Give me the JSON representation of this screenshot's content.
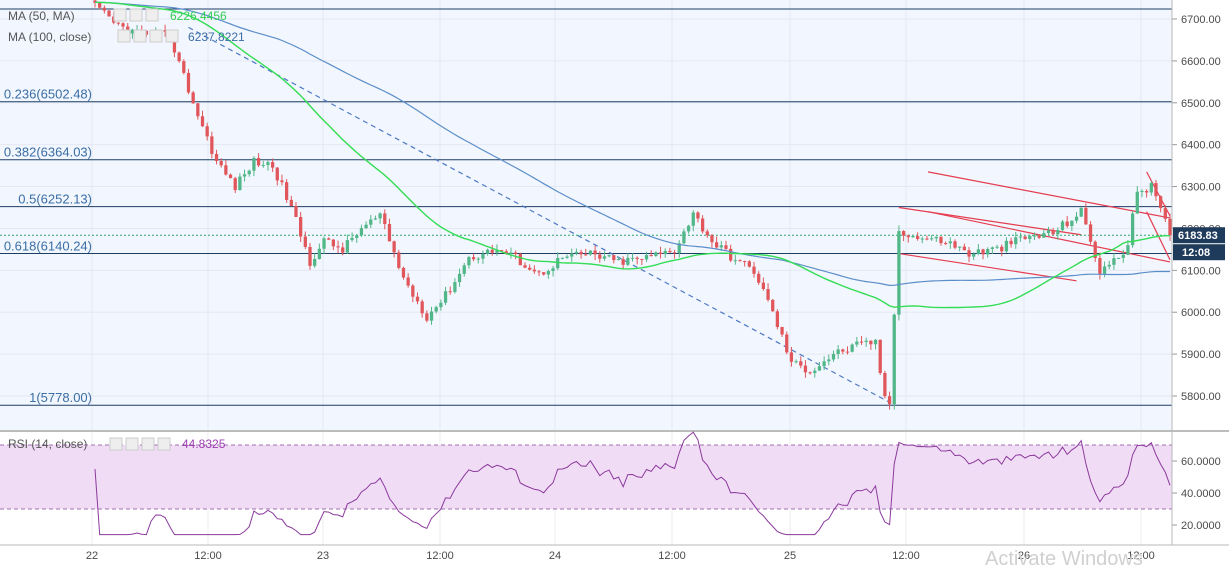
{
  "header": {
    "ma50_label": "MA (50, MA)",
    "ma50_value": "6226.4456",
    "ma100_label": "MA (100, close)",
    "ma100_value": "6237.8221",
    "rsi_label": "RSI (14, close)",
    "rsi_value": "44.8325"
  },
  "price_badge": {
    "price": "6183.83",
    "countdown": "12:08"
  },
  "watermark": "Activate Windows",
  "colors": {
    "up": "#52b788",
    "down": "#e0565b",
    "ma50": "#33dd55",
    "ma100": "#5b8ec9",
    "fib": "#1c3f66",
    "channel": "#e53d4f",
    "trendline": "#4b78c4",
    "rsi": "#8b3a9c",
    "rsi_band": "#f1dcf6",
    "badge": "#1f3b5c"
  },
  "chart_data": [
    {
      "type": "candlestick",
      "title": "",
      "x_ticks": [
        "22",
        "12:00",
        "23",
        "12:00",
        "24",
        "12:00",
        "25",
        "12:00",
        "26",
        "12:00"
      ],
      "y_ticks": [
        "6700.00",
        "6600.00",
        "6500.00",
        "6400.00",
        "6300.00",
        "6200.00",
        "6100.00",
        "6000.00",
        "5900.00",
        "5800.00"
      ],
      "ylim": [
        5750,
        6730
      ],
      "last_price": 6183.83,
      "candle_count": 231,
      "key_points": [
        {
          "i": 0,
          "price": 6730
        },
        {
          "i": 4,
          "price": 6690
        },
        {
          "i": 8,
          "price": 6670
        },
        {
          "i": 16,
          "price": 6660
        },
        {
          "i": 21,
          "price": 6500
        },
        {
          "i": 26,
          "price": 6360
        },
        {
          "i": 30,
          "price": 6300
        },
        {
          "i": 34,
          "price": 6360
        },
        {
          "i": 38,
          "price": 6350
        },
        {
          "i": 42,
          "price": 6250
        },
        {
          "i": 46,
          "price": 6120
        },
        {
          "i": 49,
          "price": 6170
        },
        {
          "i": 53,
          "price": 6150
        },
        {
          "i": 57,
          "price": 6200
        },
        {
          "i": 61,
          "price": 6230
        },
        {
          "i": 66,
          "price": 6080
        },
        {
          "i": 71,
          "price": 5990
        },
        {
          "i": 75,
          "price": 6040
        },
        {
          "i": 80,
          "price": 6130
        },
        {
          "i": 86,
          "price": 6150
        },
        {
          "i": 90,
          "price": 6130
        },
        {
          "i": 95,
          "price": 6090
        },
        {
          "i": 100,
          "price": 6130
        },
        {
          "i": 106,
          "price": 6140
        },
        {
          "i": 112,
          "price": 6120
        },
        {
          "i": 118,
          "price": 6130
        },
        {
          "i": 124,
          "price": 6150
        },
        {
          "i": 128,
          "price": 6235
        },
        {
          "i": 132,
          "price": 6170
        },
        {
          "i": 137,
          "price": 6125
        },
        {
          "i": 141,
          "price": 6100
        },
        {
          "i": 145,
          "price": 6000
        },
        {
          "i": 149,
          "price": 5880
        },
        {
          "i": 153,
          "price": 5860
        },
        {
          "i": 158,
          "price": 5900
        },
        {
          "i": 163,
          "price": 5920
        },
        {
          "i": 167,
          "price": 5930
        },
        {
          "i": 169,
          "price": 5790
        },
        {
          "i": 170,
          "price": 5785
        },
        {
          "i": 172,
          "price": 6200
        },
        {
          "i": 175,
          "price": 6180
        },
        {
          "i": 182,
          "price": 6170
        },
        {
          "i": 187,
          "price": 6140
        },
        {
          "i": 193,
          "price": 6150
        },
        {
          "i": 198,
          "price": 6175
        },
        {
          "i": 205,
          "price": 6190
        },
        {
          "i": 211,
          "price": 6240
        },
        {
          "i": 215,
          "price": 6100
        },
        {
          "i": 218,
          "price": 6120
        },
        {
          "i": 221,
          "price": 6160
        },
        {
          "i": 223,
          "price": 6290
        },
        {
          "i": 226,
          "price": 6300
        },
        {
          "i": 230,
          "price": 6183.83
        }
      ],
      "fibonacci_levels": [
        {
          "label": "0.236(6502.48)",
          "price": 6502.48
        },
        {
          "label": "0.382(6364.03)",
          "price": 6364.03
        },
        {
          "label": "0.5(6252.13)",
          "price": 6252.13
        },
        {
          "label": "0.618(6140.24)",
          "price": 6140.24
        },
        {
          "label": "1(5778.00)",
          "price": 5778.0
        }
      ],
      "moving_averages": [
        {
          "name": "MA (50, MA)",
          "value": 6226.4456
        },
        {
          "name": "MA (100, close)",
          "value": 6237.8221
        }
      ]
    },
    {
      "type": "line",
      "title": "RSI (14, close)",
      "y_ticks": [
        "60.0000",
        "40.0000",
        "20.0000"
      ],
      "ylim": [
        10,
        80
      ],
      "bands": [
        30,
        70
      ],
      "last_value": 44.8325
    }
  ]
}
